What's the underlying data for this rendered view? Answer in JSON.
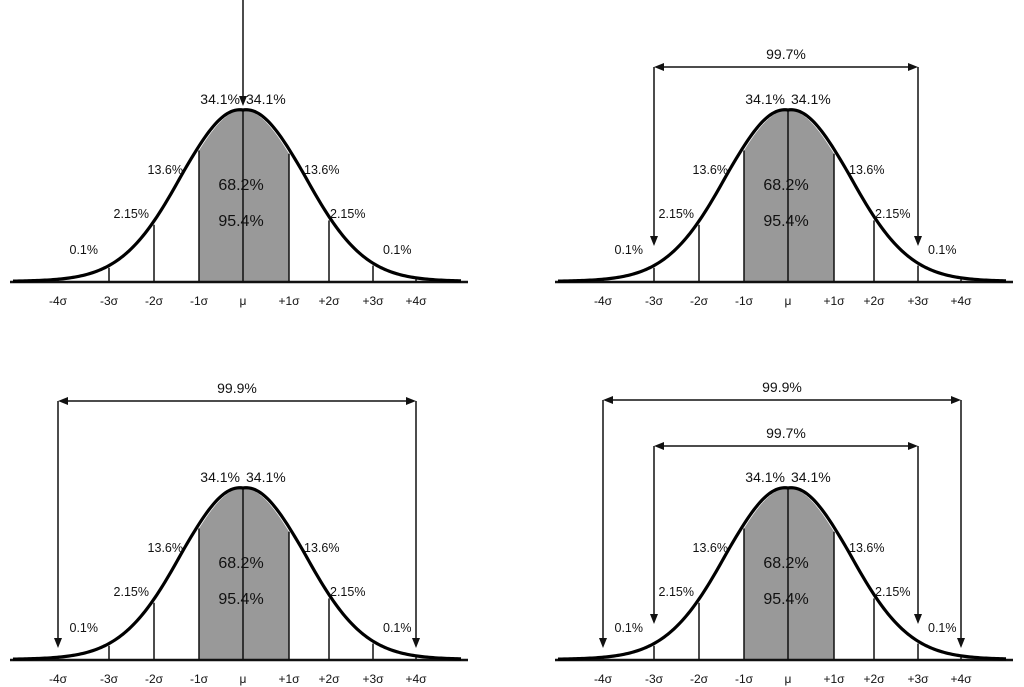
{
  "colors": {
    "curve": "#000000",
    "shade": "#999999",
    "line": "#111111"
  },
  "axis_labels": [
    "-4σ",
    "-3σ",
    "-2σ",
    "-1σ",
    "μ",
    "+1σ",
    "+2σ",
    "+3σ",
    "+4σ"
  ],
  "segment_labels": {
    "center_left": "34.1%",
    "center_right": "34.1%",
    "band1": "13.6%",
    "band2": "2.15%",
    "band3": "0.1%",
    "inner_1": "68.2%",
    "inner_2": "95.4%"
  },
  "panels": [
    {
      "id": "top-left",
      "pointer_at_mean": true,
      "ranges": []
    },
    {
      "id": "top-right",
      "pointer_at_mean": false,
      "ranges": [
        {
          "label": "99.7%",
          "from_sigma": -3,
          "to_sigma": 3
        }
      ]
    },
    {
      "id": "bottom-left",
      "pointer_at_mean": false,
      "ranges": [
        {
          "label": "99.9%",
          "from_sigma": -4,
          "to_sigma": 4
        }
      ]
    },
    {
      "id": "bottom-right",
      "pointer_at_mean": false,
      "ranges": [
        {
          "label": "99.9%",
          "from_sigma": -4,
          "to_sigma": 4
        },
        {
          "label": "99.7%",
          "from_sigma": -3,
          "to_sigma": 3
        }
      ]
    }
  ]
}
